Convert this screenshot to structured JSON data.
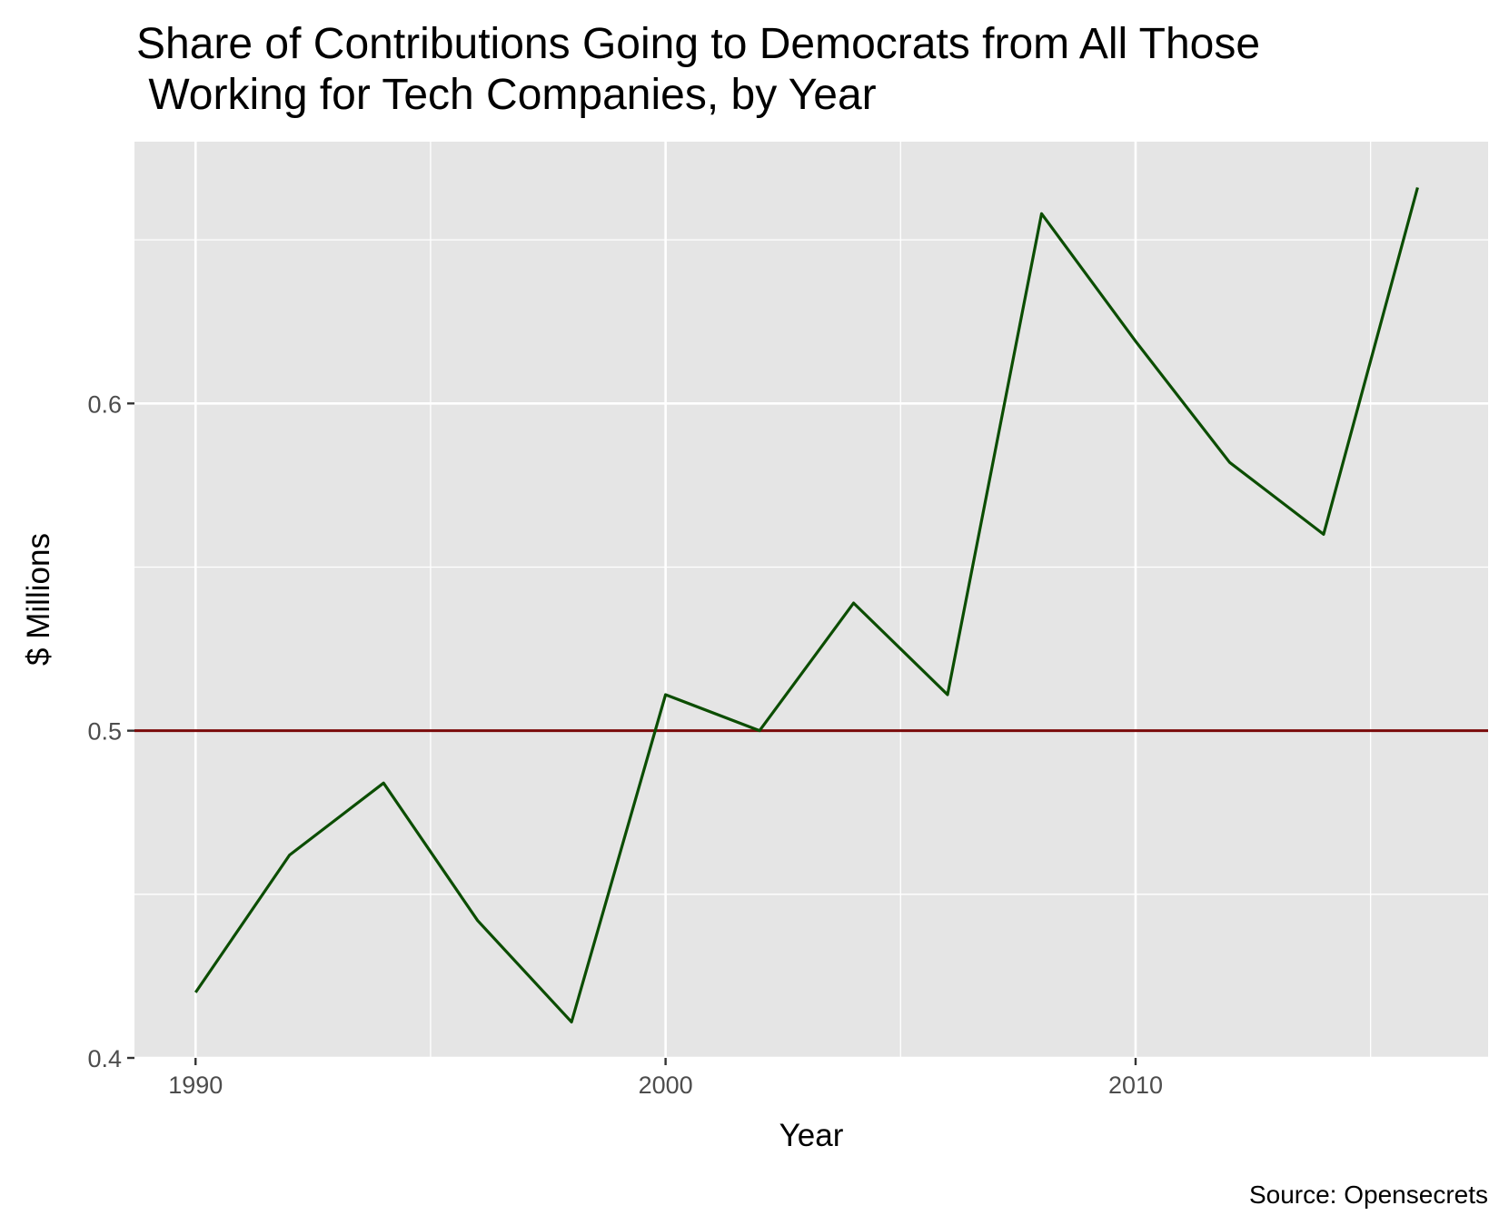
{
  "chart_data": {
    "type": "line",
    "title_lines": [
      "Share of Contributions Going to Democrats from All Those",
      " Working for Tech Companies, by Year"
    ],
    "xlabel": "Year",
    "ylabel": "$ Millions",
    "caption": "Source: Opensecrets",
    "xlim": [
      1988.7,
      2017.5
    ],
    "ylim": [
      0.4,
      0.68
    ],
    "x_ticks": [
      1990,
      2000,
      2010
    ],
    "x_tick_labels": [
      "1990",
      "2000",
      "2010"
    ],
    "x_minor_ticks": [
      1995,
      2005,
      2015
    ],
    "y_ticks": [
      0.4,
      0.5,
      0.6
    ],
    "y_tick_labels": [
      "0.4",
      "0.5",
      "0.6"
    ],
    "y_minor_ticks": [
      0.45,
      0.55,
      0.65
    ],
    "grid": true,
    "panel_color": "#e5e5e5",
    "line_color": "#0b4d00",
    "reference_line": {
      "y": 0.5,
      "color": "#7a0a0a"
    },
    "series": [
      {
        "x": [
          1990,
          1992,
          1994,
          1996,
          1998,
          2000,
          2002,
          2004,
          2006,
          2008,
          2010,
          2012,
          2014,
          2016
        ],
        "values": [
          0.42,
          0.462,
          0.484,
          0.442,
          0.411,
          0.511,
          0.5,
          0.539,
          0.511,
          0.658,
          0.619,
          0.582,
          0.56,
          0.666
        ]
      }
    ]
  }
}
